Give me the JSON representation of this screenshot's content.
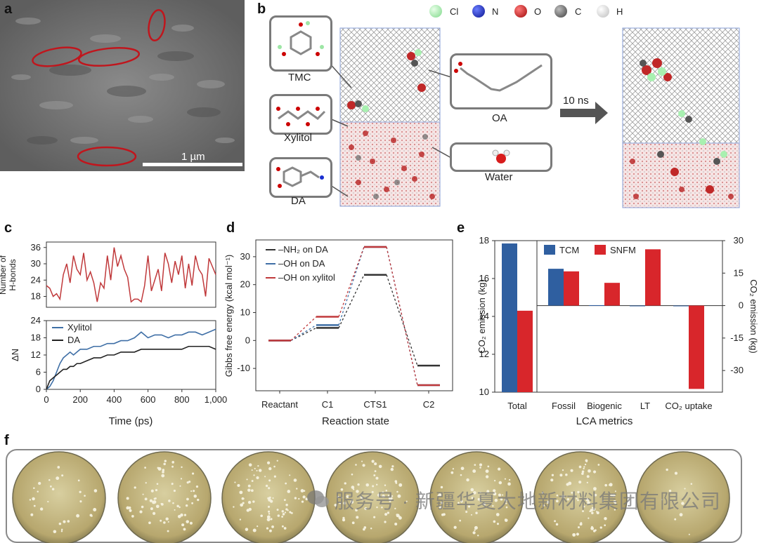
{
  "panel_labels": {
    "a": "a",
    "b": "b",
    "c": "c",
    "d": "d",
    "e": "e",
    "f": "f"
  },
  "panel_a": {
    "scale_bar": "1 µm"
  },
  "panel_b": {
    "legend": [
      {
        "label": "Cl",
        "color": "#a8f0b0"
      },
      {
        "label": "N",
        "color": "#1a2fd0"
      },
      {
        "label": "O",
        "color": "#e01818"
      },
      {
        "label": "C",
        "color": "#707070"
      },
      {
        "label": "H",
        "color": "#f2f2f2"
      }
    ],
    "molecules": {
      "tmc": "TMC",
      "xylitol": "Xylitol",
      "da": "DA",
      "oa": "OA",
      "water": "Water"
    },
    "arrow_label": "10 ns"
  },
  "chart_data": [
    {
      "type": "line",
      "panel": "c-top",
      "ylabel": "Number of H-bonds",
      "yticks": [
        18,
        24,
        30,
        36
      ],
      "ylim": [
        14,
        38
      ],
      "xlim": [
        0,
        1000
      ],
      "series": [
        {
          "color": "#c0393b",
          "x": [
            0,
            20,
            40,
            60,
            80,
            100,
            120,
            140,
            160,
            180,
            200,
            220,
            240,
            260,
            280,
            300,
            320,
            340,
            360,
            380,
            400,
            420,
            440,
            460,
            480,
            500,
            520,
            540,
            560,
            580,
            600,
            620,
            640,
            660,
            680,
            700,
            720,
            740,
            760,
            780,
            800,
            820,
            840,
            860,
            880,
            900,
            920,
            940,
            960,
            980,
            1000
          ],
          "values": [
            22,
            21,
            18,
            19,
            17,
            26,
            30,
            23,
            33,
            28,
            26,
            34,
            24,
            27,
            23,
            16,
            23,
            21,
            33,
            24,
            36,
            29,
            33,
            28,
            25,
            16,
            17,
            17,
            16,
            22,
            33,
            20,
            24,
            28,
            20,
            34,
            30,
            23,
            31,
            26,
            33,
            21,
            30,
            22,
            33,
            28,
            26,
            18,
            32,
            29,
            26
          ]
        }
      ]
    },
    {
      "type": "line",
      "panel": "c-bottom",
      "xlabel": "Time (ps)",
      "ylabel": "ΔN",
      "xticks": [
        0,
        200,
        400,
        600,
        800,
        "1,000"
      ],
      "yticks": [
        0,
        6,
        12,
        18,
        24
      ],
      "ylim": [
        0,
        24
      ],
      "xlim": [
        0,
        1000
      ],
      "series": [
        {
          "name": "Xylitol",
          "color": "#3f6fa6",
          "x": [
            0,
            20,
            40,
            60,
            80,
            100,
            120,
            140,
            160,
            180,
            200,
            240,
            280,
            320,
            360,
            400,
            440,
            480,
            520,
            560,
            600,
            640,
            680,
            720,
            760,
            800,
            840,
            880,
            920,
            960,
            1000
          ],
          "values": [
            0,
            1,
            3,
            6,
            9,
            11,
            12,
            13,
            12,
            13,
            14,
            14,
            15,
            15,
            16,
            16,
            17,
            17,
            18,
            20,
            18,
            19,
            19,
            18,
            19,
            19,
            20,
            20,
            19,
            20,
            21
          ]
        },
        {
          "name": "DA",
          "color": "#222222",
          "x": [
            0,
            20,
            40,
            60,
            80,
            100,
            120,
            140,
            160,
            180,
            200,
            240,
            280,
            320,
            360,
            400,
            440,
            480,
            520,
            560,
            600,
            640,
            680,
            720,
            760,
            800,
            840,
            880,
            920,
            960,
            1000
          ],
          "values": [
            0,
            3,
            4,
            5,
            6,
            7,
            7,
            8,
            8,
            9,
            9,
            10,
            11,
            11,
            12,
            12,
            13,
            13,
            13,
            14,
            14,
            14,
            14,
            14,
            14,
            14,
            15,
            15,
            15,
            15,
            14
          ]
        }
      ]
    },
    {
      "type": "line",
      "panel": "d",
      "xlabel": "Reaction state",
      "ylabel": "Gibbs free energy (kcal mol⁻¹)",
      "categories": [
        "Reactant",
        "C1",
        "CTS1",
        "C2"
      ],
      "yticks": [
        -10,
        0,
        10,
        20,
        30
      ],
      "ylim": [
        -18,
        36
      ],
      "series": [
        {
          "name": "–NH₂ on DA",
          "color": "#333333",
          "values": [
            0,
            4.5,
            23.5,
            -9
          ]
        },
        {
          "name": "–OH on DA",
          "color": "#3f6fa6",
          "values": [
            0,
            5.5,
            33.5,
            -16
          ]
        },
        {
          "name": "–OH on xylitol",
          "color": "#c0393b",
          "values": [
            0,
            8.5,
            33.5,
            -16
          ]
        }
      ]
    },
    {
      "type": "bar",
      "panel": "e",
      "xlabel": "LCA metrics",
      "ylabel": "CO₂ emission (kg)",
      "ylabel_right": "CO₂ emission (kg)",
      "categories": [
        "Total",
        "Fossil",
        "Biogenic",
        "LT",
        "CO₂ uptake"
      ],
      "yticks_left": [
        10,
        12,
        14,
        16,
        18
      ],
      "yticks_right": [
        30,
        15,
        0,
        -15,
        -30
      ],
      "ylim_left": [
        10,
        18
      ],
      "ylim_right": [
        -40,
        30
      ],
      "series": [
        {
          "name": "TCM",
          "color": "#2f5fa0",
          "values": [
            17.85,
            17,
            0.2,
            0,
            -0.3
          ]
        },
        {
          "name": "SNFM",
          "color": "#d8262b",
          "values": [
            14.3,
            15.8,
            10.5,
            26,
            -38.5
          ]
        }
      ]
    }
  ],
  "watermark": {
    "line1": "服务号 · 新疆华夏大地新材料集团有限公司"
  }
}
